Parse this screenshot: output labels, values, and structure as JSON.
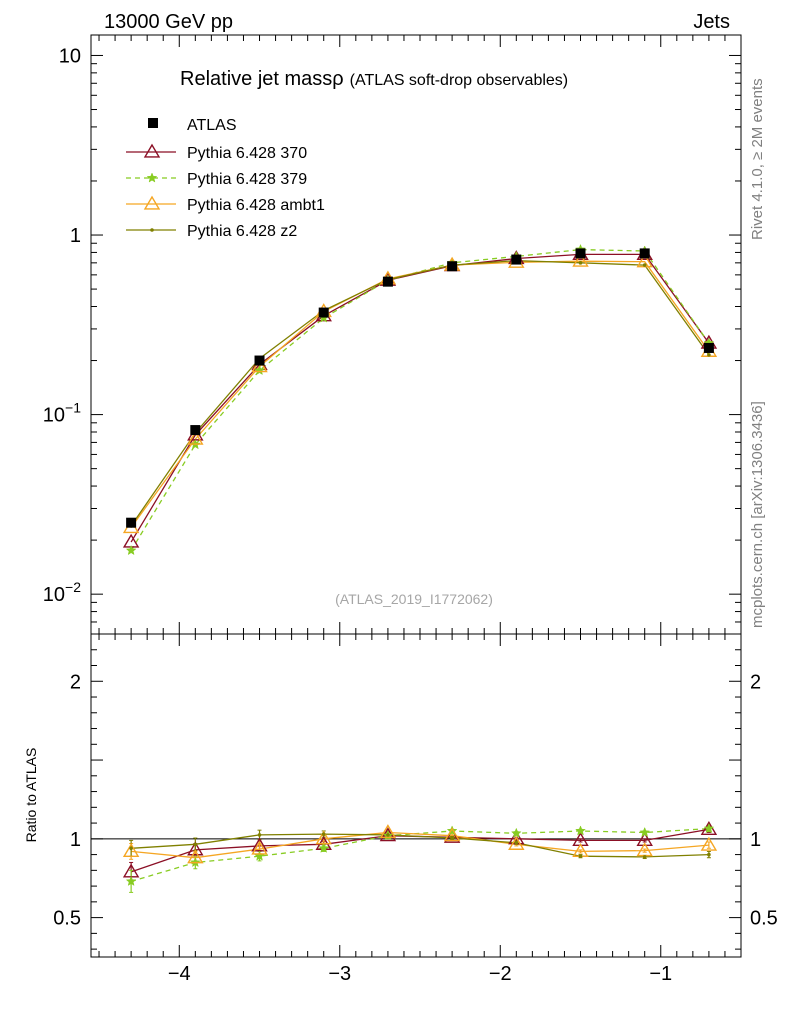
{
  "header": {
    "left": "13000 GeV pp",
    "right": "Jets"
  },
  "side_labels": {
    "top": "Rivet 4.1.0, ≥ 2M events",
    "bottom": "mcplots.cern.ch [arXiv:1306.3436]"
  },
  "chart_data": {
    "type": "line",
    "title": "Relative jet massρ",
    "subtitle": "(ATLAS soft-drop observables)",
    "analysis_id": "(ATLAS_2019_I1772062)",
    "xlabel": "",
    "ratio_ylabel": "Ratio to ATLAS",
    "xlim": [
      -4.55,
      -0.5
    ],
    "ylim_main": [
      0.006,
      13
    ],
    "ylim_ratio": [
      0.25,
      2.3
    ],
    "y_log_main": true,
    "x_ticks": [
      -4,
      -3,
      -2,
      -1
    ],
    "x_tick_labels": [
      "−4",
      "−3",
      "−2",
      "−1"
    ],
    "main_ticks": [
      {
        "value": 10,
        "base": "10",
        "exp": ""
      },
      {
        "value": 1,
        "base": "1",
        "exp": ""
      },
      {
        "value": 0.1,
        "base": "10",
        "exp": "−1"
      },
      {
        "value": 0.01,
        "base": "10",
        "exp": "−2"
      }
    ],
    "ratio_ticks": [
      {
        "value": 2,
        "label": "2"
      },
      {
        "value": 1,
        "label": "1"
      },
      {
        "value": 0.5,
        "label": "0.5"
      }
    ],
    "x": [
      -4.3,
      -3.9,
      -3.5,
      -3.1,
      -2.7,
      -2.3,
      -1.9,
      -1.5,
      -1.1,
      -0.7
    ],
    "data": {
      "name": "ATLAS",
      "values": [
        0.025,
        0.082,
        0.2,
        0.37,
        0.55,
        0.67,
        0.73,
        0.79,
        0.79,
        0.235
      ],
      "color": "#000000"
    },
    "series": [
      {
        "name": "Pythia 6.428 370",
        "color": "#8b0f25",
        "marker": "triangle-open",
        "dashed": false,
        "values": [
          0.0195,
          0.077,
          0.19,
          0.355,
          0.56,
          0.675,
          0.74,
          0.78,
          0.78,
          0.25
        ],
        "ratio": [
          0.79,
          0.93,
          0.955,
          0.965,
          1.02,
          1.01,
          1.0,
          0.99,
          0.99,
          1.06
        ],
        "ratio_err": [
          0.06,
          0.04,
          0.03,
          0.02,
          0.02,
          0.01,
          0.01,
          0.01,
          0.01,
          0.02
        ]
      },
      {
        "name": "Pythia 6.428 379",
        "color": "#88cc22",
        "marker": "star",
        "dashed": true,
        "values": [
          0.0175,
          0.068,
          0.176,
          0.345,
          0.56,
          0.7,
          0.76,
          0.83,
          0.815,
          0.25
        ],
        "ratio": [
          0.73,
          0.85,
          0.89,
          0.94,
          1.02,
          1.05,
          1.035,
          1.05,
          1.04,
          1.065
        ],
        "ratio_err": [
          0.07,
          0.04,
          0.03,
          0.02,
          0.02,
          0.01,
          0.01,
          0.01,
          0.01,
          0.02
        ]
      },
      {
        "name": "Pythia 6.428 ambt1",
        "color": "#f5a623",
        "marker": "triangle-open",
        "dashed": false,
        "values": [
          0.0235,
          0.073,
          0.185,
          0.375,
          0.57,
          0.68,
          0.705,
          0.715,
          0.71,
          0.225
        ],
        "ratio": [
          0.92,
          0.88,
          0.935,
          1.0,
          1.04,
          1.02,
          0.965,
          0.92,
          0.925,
          0.96
        ],
        "ratio_err": [
          0.05,
          0.04,
          0.03,
          0.02,
          0.02,
          0.01,
          0.01,
          0.01,
          0.01,
          0.02
        ]
      },
      {
        "name": "Pythia 6.428 z2",
        "color": "#808000",
        "marker": "dot",
        "dashed": false,
        "values": [
          0.024,
          0.079,
          0.205,
          0.38,
          0.565,
          0.68,
          0.72,
          0.7,
          0.68,
          0.215
        ],
        "ratio": [
          0.94,
          0.965,
          1.025,
          1.03,
          1.025,
          1.005,
          0.975,
          0.89,
          0.885,
          0.9
        ],
        "ratio_err": [
          0.05,
          0.04,
          0.03,
          0.02,
          0.02,
          0.01,
          0.01,
          0.01,
          0.01,
          0.02
        ]
      }
    ]
  }
}
